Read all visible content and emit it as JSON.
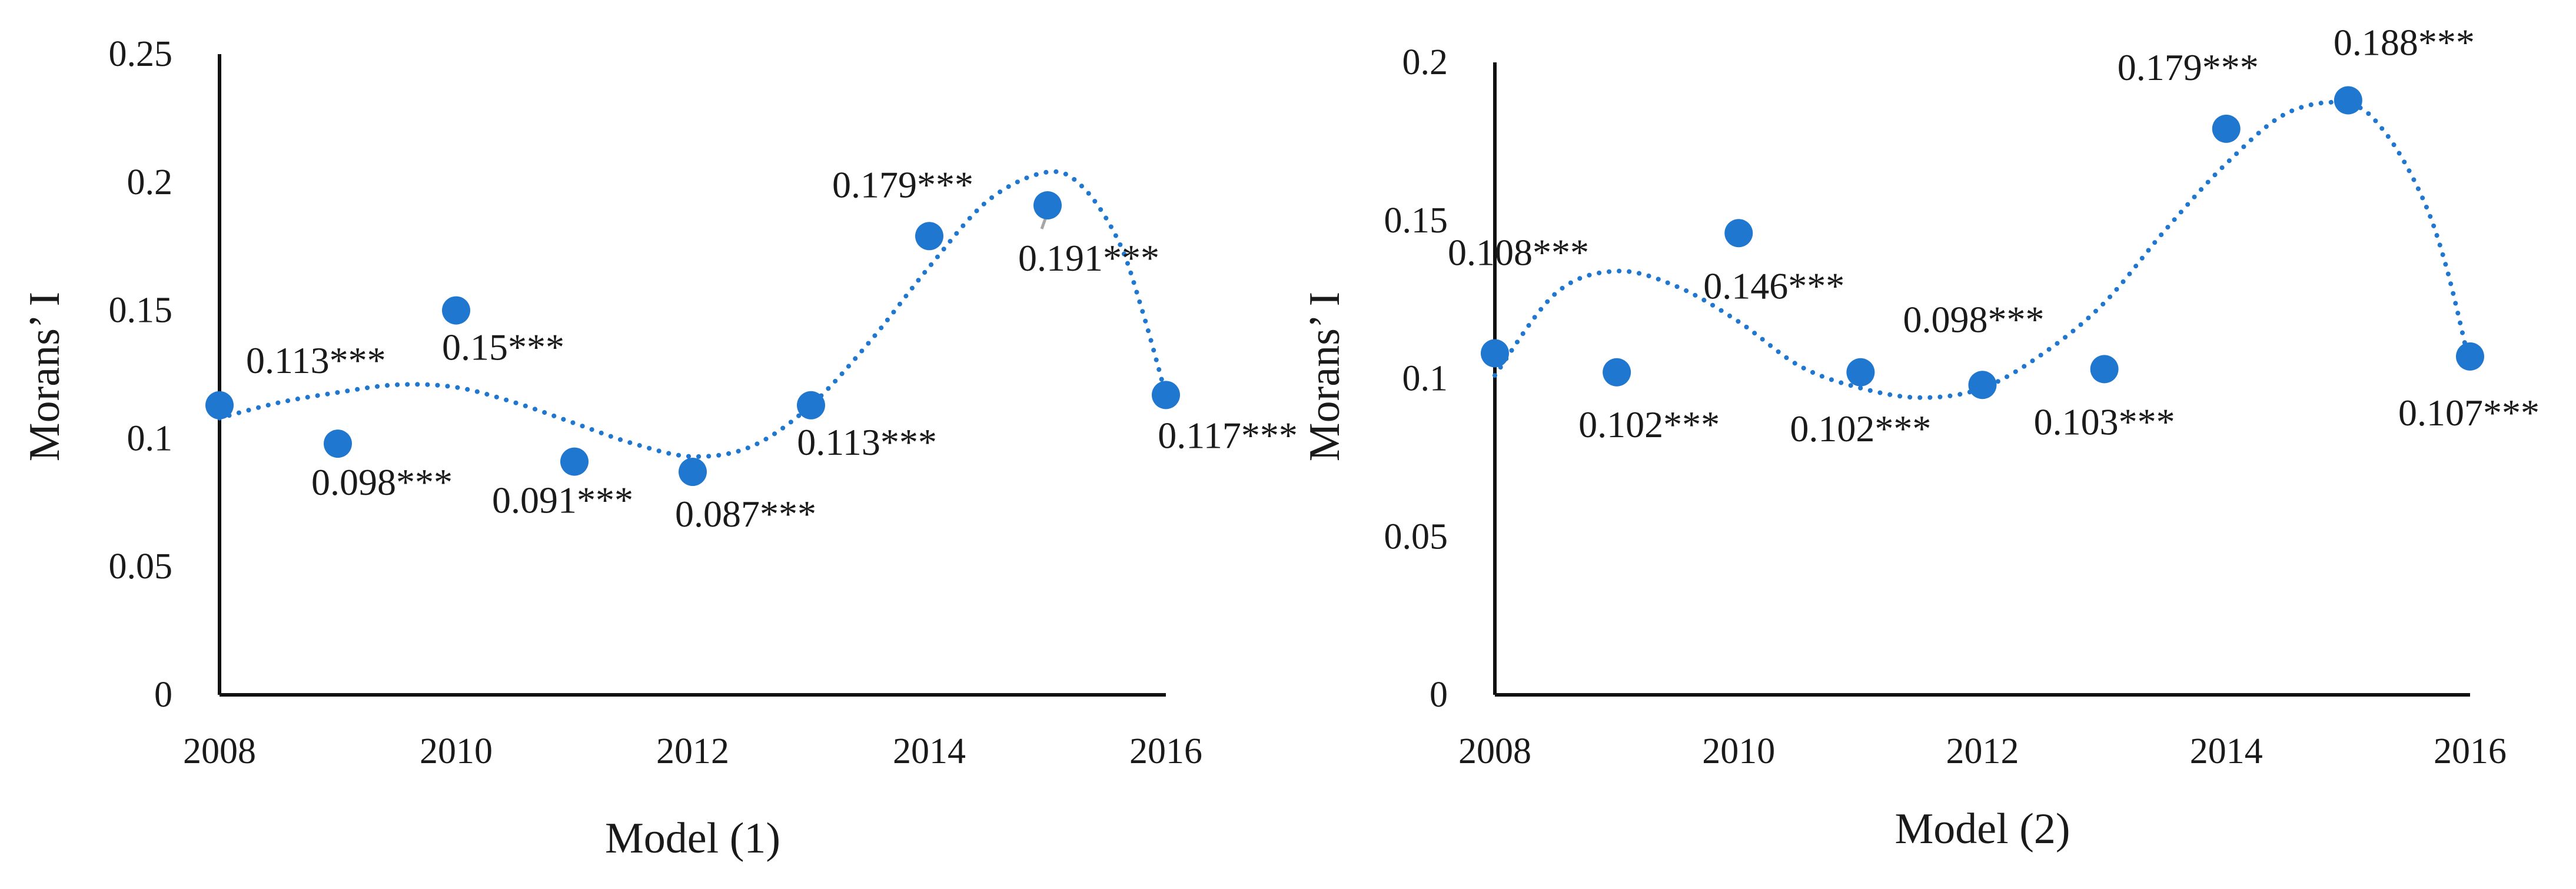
{
  "colors": {
    "point": "#1f77d0",
    "trend": "#1f77d0",
    "axis": "#111111",
    "text": "#1a1a1a",
    "leader": "#a6a6a6"
  },
  "chart_data": [
    {
      "type": "scatter",
      "trendline": "polynomial, dotted",
      "xlabel": "Model (1)",
      "ylabel": "Morans’ I",
      "xlim": [
        2008,
        2016
      ],
      "ylim": [
        0,
        0.25
      ],
      "x_ticks": [
        "2008",
        "2010",
        "2012",
        "2014",
        "2016"
      ],
      "y_ticks": [
        "0",
        "0.05",
        "0.1",
        "0.15",
        "0.2",
        "0.25"
      ],
      "grid": false,
      "legend": "none",
      "x": [
        2008,
        2009,
        2010,
        2011,
        2012,
        2013,
        2014,
        2015,
        2016
      ],
      "y": [
        0.113,
        0.098,
        0.15,
        0.091,
        0.087,
        0.113,
        0.179,
        0.191,
        0.117
      ],
      "labels": [
        "0.113***",
        "0.098***",
        "0.15***",
        "0.091***",
        "0.087***",
        "0.113***",
        "0.179***",
        "0.191***",
        "0.117***"
      ],
      "trend_points": [
        [
          2008,
          0.108
        ],
        [
          2008.5,
          0.114
        ],
        [
          2009,
          0.118
        ],
        [
          2009.5,
          0.121
        ],
        [
          2010,
          0.12
        ],
        [
          2010.5,
          0.114
        ],
        [
          2011,
          0.106
        ],
        [
          2011.5,
          0.098
        ],
        [
          2012,
          0.093
        ],
        [
          2012.5,
          0.097
        ],
        [
          2013,
          0.113
        ],
        [
          2013.5,
          0.138
        ],
        [
          2014,
          0.167
        ],
        [
          2014.5,
          0.193
        ],
        [
          2015,
          0.204
        ],
        [
          2015.3,
          0.198
        ],
        [
          2015.6,
          0.177
        ],
        [
          2015.8,
          0.15
        ],
        [
          2016,
          0.117
        ]
      ]
    },
    {
      "type": "scatter",
      "trendline": "polynomial, dotted",
      "xlabel": "Model (2)",
      "ylabel": "Morans’ I",
      "xlim": [
        2008,
        2016
      ],
      "ylim": [
        0,
        0.2
      ],
      "x_ticks": [
        "2008",
        "2010",
        "2012",
        "2014",
        "2016"
      ],
      "y_ticks": [
        "0",
        "0.05",
        "0.1",
        "0.15",
        "0.2"
      ],
      "grid": false,
      "legend": "none",
      "x": [
        2008,
        2009,
        2010,
        2011,
        2012,
        2013,
        2014,
        2015,
        2016
      ],
      "y": [
        0.108,
        0.102,
        0.146,
        0.102,
        0.098,
        0.103,
        0.179,
        0.188,
        0.107
      ],
      "labels": [
        "0.108***",
        "0.102***",
        "0.146***",
        "0.102***",
        "0.098***",
        "0.103***",
        "0.179***",
        "0.188***",
        "0.107***"
      ],
      "trend_points": [
        [
          2008,
          0.101
        ],
        [
          2008.5,
          0.127
        ],
        [
          2009,
          0.134
        ],
        [
          2009.5,
          0.129
        ],
        [
          2010,
          0.118
        ],
        [
          2010.5,
          0.104
        ],
        [
          2011,
          0.097
        ],
        [
          2011.5,
          0.094
        ],
        [
          2012,
          0.097
        ],
        [
          2012.5,
          0.108
        ],
        [
          2013,
          0.124
        ],
        [
          2013.5,
          0.147
        ],
        [
          2014,
          0.168
        ],
        [
          2014.5,
          0.184
        ],
        [
          2015,
          0.187
        ],
        [
          2015.3,
          0.178
        ],
        [
          2015.6,
          0.158
        ],
        [
          2015.8,
          0.136
        ],
        [
          2016,
          0.104
        ]
      ]
    }
  ]
}
